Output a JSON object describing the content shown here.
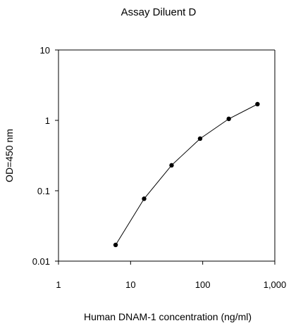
{
  "chart_data": {
    "type": "line",
    "title": "Assay Diluent D",
    "xlabel": "Human DNAM-1 concentration (ng/ml)",
    "ylabel": "OD=450 nm",
    "xscale": "log",
    "yscale": "log",
    "xlim": [
      1,
      1000
    ],
    "ylim": [
      0.01,
      10
    ],
    "xticks": [
      1,
      10,
      100,
      1000
    ],
    "xtick_labels": [
      "1",
      "10",
      "100",
      "1,000"
    ],
    "yticks": [
      0.01,
      0.1,
      1,
      10
    ],
    "ytick_labels": [
      "0.01",
      "0.1",
      "1",
      "10"
    ],
    "grid": false,
    "series": [
      {
        "x": [
          6.2,
          15.4,
          37,
          92,
          230,
          575
        ],
        "y": [
          0.017,
          0.077,
          0.23,
          0.55,
          1.05,
          1.7
        ]
      }
    ]
  }
}
